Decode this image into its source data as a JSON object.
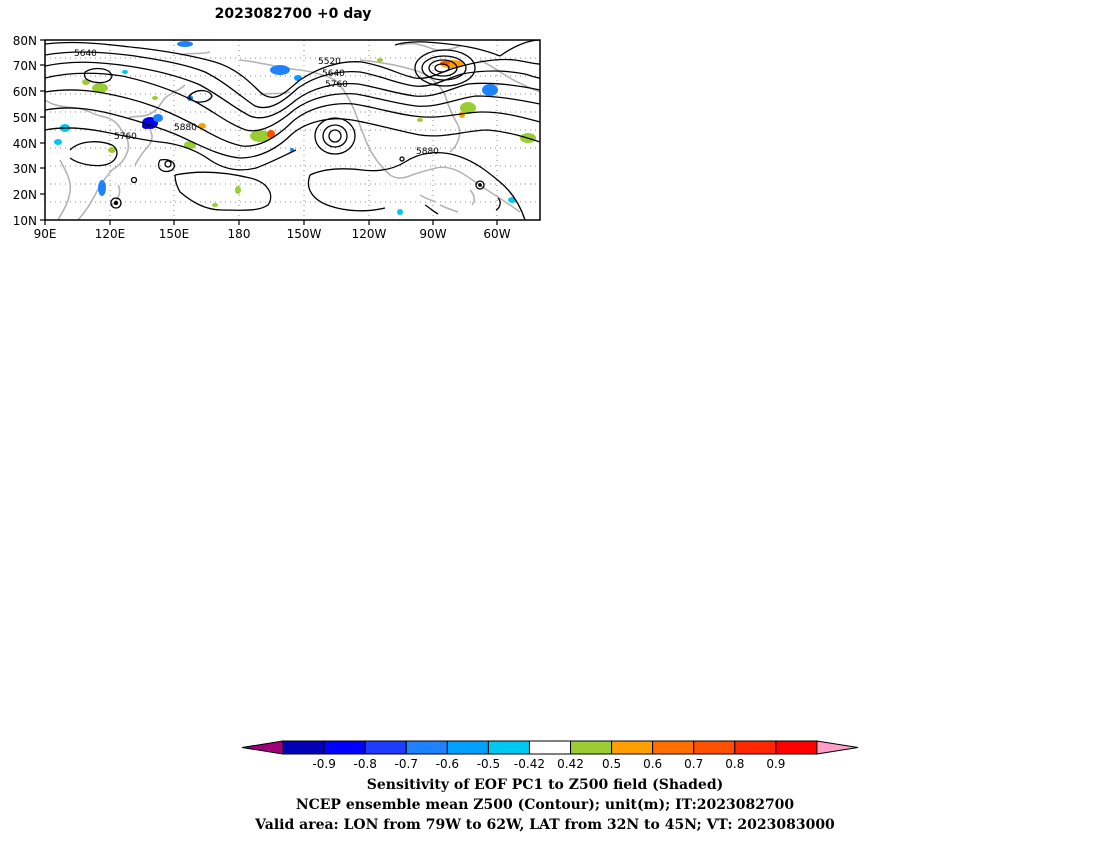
{
  "title": "2023082700  +0 day",
  "map": {
    "lat_labels": [
      "80N",
      "70N",
      "60N",
      "50N",
      "40N",
      "30N",
      "20N",
      "10N"
    ],
    "lon_labels": [
      "90E",
      "120E",
      "150E",
      "180",
      "150W",
      "120W",
      "90W",
      "60W"
    ],
    "contour_labels": [
      "5640",
      "5520",
      "5640",
      "5760",
      "5760",
      "5880",
      "5880"
    ],
    "colors": {
      "coast": "#b4b4b4",
      "contour": "#000000",
      "grid": "#8c8c8c"
    }
  },
  "colorbar": {
    "colors": [
      "#a0007a",
      "#0000b4",
      "#0000ff",
      "#1e3cff",
      "#1e82ff",
      "#00a0ff",
      "#00c8f0",
      "#ffffff",
      "#9acd32",
      "#ff9f00",
      "#ff7000",
      "#ff5000",
      "#ff2800",
      "#ff0000",
      "#ff9ec8"
    ],
    "ticks": [
      "-0.9",
      "-0.8",
      "-0.7",
      "-0.6",
      "-0.5",
      "-0.42",
      "0.42",
      "0.5",
      "0.6",
      "0.7",
      "0.8",
      "0.9"
    ]
  },
  "caption": {
    "line1": "Sensitivity of EOF PC1 to Z500 field (Shaded)",
    "line2": "NCEP ensemble mean Z500 (Contour); unit(m); IT:2023082700",
    "line3": "Valid area: LON from 79W to 62W, LAT from 32N to 45N; VT: 2023083000"
  }
}
